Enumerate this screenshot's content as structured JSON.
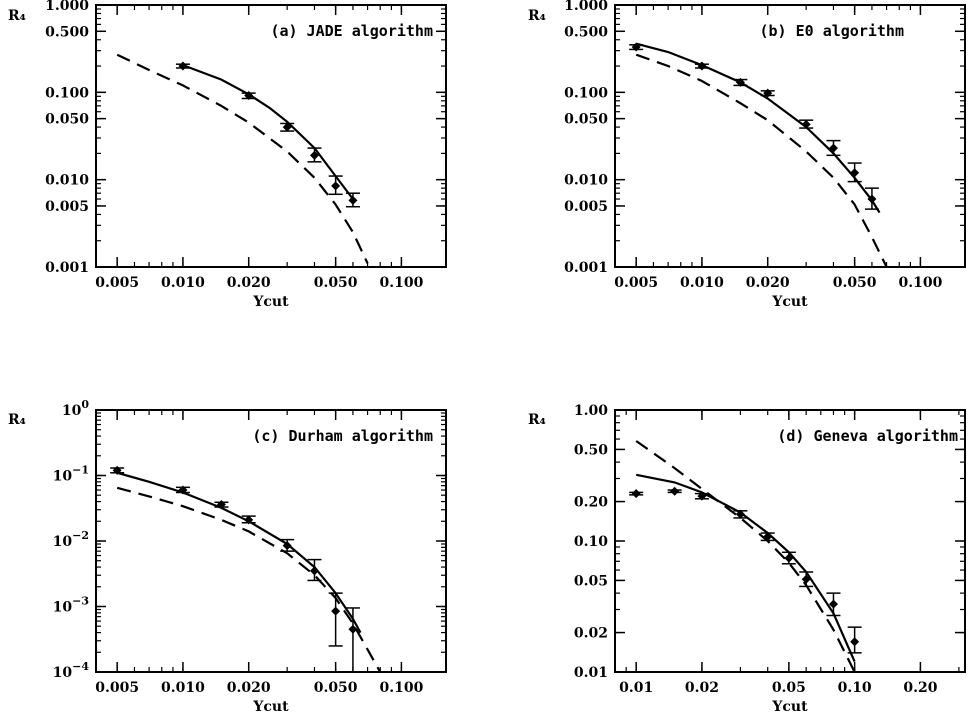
{
  "chart_data": [
    {
      "type": "line",
      "title": "(a) JADE algorithm",
      "xlabel": "Ycut",
      "ylabel": "R₄",
      "xscale": "log",
      "yscale": "log",
      "xlim": [
        0.004,
        0.16
      ],
      "ylim": [
        0.001,
        1.0
      ],
      "x_ticks": [
        {
          "v": 0.005,
          "t": "0.005"
        },
        {
          "v": 0.01,
          "t": "0.010"
        },
        {
          "v": 0.02,
          "t": "0.020"
        },
        {
          "v": 0.05,
          "t": "0.050"
        },
        {
          "v": 0.1,
          "t": "0.100"
        }
      ],
      "y_ticks": [
        {
          "v": 0.001,
          "t": "0.001"
        },
        {
          "v": 0.005,
          "t": "0.005"
        },
        {
          "v": 0.01,
          "t": "0.010"
        },
        {
          "v": 0.05,
          "t": "0.050"
        },
        {
          "v": 0.1,
          "t": "0.100"
        },
        {
          "v": 0.5,
          "t": "0.500"
        },
        {
          "v": 1.0,
          "t": "1.000"
        }
      ],
      "series": [
        {
          "style": "points",
          "x": [
            0.01,
            0.02,
            0.03,
            0.04,
            0.05,
            0.06
          ],
          "y": [
            0.2,
            0.092,
            0.04,
            0.019,
            0.0085,
            0.0058
          ],
          "err_low": [
            0.19,
            0.085,
            0.036,
            0.016,
            0.0068,
            0.0049
          ],
          "err_high": [
            0.21,
            0.098,
            0.044,
            0.023,
            0.011,
            0.007
          ]
        },
        {
          "style": "solid",
          "x": [
            0.01,
            0.015,
            0.02,
            0.025,
            0.03,
            0.04,
            0.05,
            0.06
          ],
          "y": [
            0.205,
            0.14,
            0.095,
            0.066,
            0.046,
            0.023,
            0.011,
            0.006
          ]
        },
        {
          "style": "dashed",
          "x": [
            0.005,
            0.007,
            0.01,
            0.015,
            0.02,
            0.03,
            0.04,
            0.05,
            0.06,
            0.07
          ],
          "y": [
            0.27,
            0.18,
            0.12,
            0.07,
            0.045,
            0.021,
            0.0105,
            0.0052,
            0.0025,
            0.0011
          ]
        }
      ]
    },
    {
      "type": "line",
      "title": "(b) E0 algorithm",
      "xlabel": "Ycut",
      "ylabel": "R₄",
      "xscale": "log",
      "yscale": "log",
      "xlim": [
        0.004,
        0.16
      ],
      "ylim": [
        0.001,
        1.0
      ],
      "x_ticks": [
        {
          "v": 0.005,
          "t": "0.005"
        },
        {
          "v": 0.01,
          "t": "0.010"
        },
        {
          "v": 0.02,
          "t": "0.020"
        },
        {
          "v": 0.05,
          "t": "0.050"
        },
        {
          "v": 0.1,
          "t": "0.100"
        }
      ],
      "y_ticks": [
        {
          "v": 0.001,
          "t": "0.001"
        },
        {
          "v": 0.005,
          "t": "0.005"
        },
        {
          "v": 0.01,
          "t": "0.010"
        },
        {
          "v": 0.05,
          "t": "0.050"
        },
        {
          "v": 0.1,
          "t": "0.100"
        },
        {
          "v": 0.5,
          "t": "0.500"
        },
        {
          "v": 1.0,
          "t": "1.000"
        }
      ],
      "series": [
        {
          "style": "points",
          "x": [
            0.005,
            0.01,
            0.015,
            0.02,
            0.03,
            0.04,
            0.05,
            0.06
          ],
          "y": [
            0.33,
            0.2,
            0.13,
            0.098,
            0.043,
            0.023,
            0.012,
            0.006
          ],
          "err_low": [
            0.31,
            0.19,
            0.12,
            0.092,
            0.039,
            0.019,
            0.0095,
            0.0046
          ],
          "err_high": [
            0.35,
            0.21,
            0.14,
            0.104,
            0.048,
            0.028,
            0.0155,
            0.008
          ]
        },
        {
          "style": "solid",
          "x": [
            0.005,
            0.007,
            0.01,
            0.015,
            0.02,
            0.03,
            0.04,
            0.05,
            0.06,
            0.065
          ],
          "y": [
            0.36,
            0.29,
            0.205,
            0.13,
            0.085,
            0.04,
            0.02,
            0.0105,
            0.0058,
            0.0042
          ]
        },
        {
          "style": "dashed",
          "x": [
            0.005,
            0.007,
            0.01,
            0.015,
            0.02,
            0.03,
            0.04,
            0.05,
            0.06,
            0.07
          ],
          "y": [
            0.27,
            0.2,
            0.135,
            0.075,
            0.048,
            0.021,
            0.0105,
            0.0052,
            0.0022,
            0.001
          ]
        }
      ]
    },
    {
      "type": "line",
      "title": "(c) Durham algorithm",
      "xlabel": "Ycut",
      "ylabel": "R₄",
      "xscale": "log",
      "yscale": "log",
      "xlim": [
        0.004,
        0.16
      ],
      "ylim": [
        0.0001,
        1.0
      ],
      "x_ticks": [
        {
          "v": 0.005,
          "t": "0.005"
        },
        {
          "v": 0.01,
          "t": "0.010"
        },
        {
          "v": 0.02,
          "t": "0.020"
        },
        {
          "v": 0.05,
          "t": "0.050"
        },
        {
          "v": 0.1,
          "t": "0.100"
        }
      ],
      "y_ticks": [
        {
          "v": 0.0001,
          "b": "10",
          "e": "−4"
        },
        {
          "v": 0.001,
          "b": "10",
          "e": "−3"
        },
        {
          "v": 0.01,
          "b": "10",
          "e": "−2"
        },
        {
          "v": 0.1,
          "b": "10",
          "e": "−1"
        },
        {
          "v": 1.0,
          "b": "10",
          "e": "0"
        }
      ],
      "series": [
        {
          "style": "points",
          "x": [
            0.005,
            0.01,
            0.015,
            0.02,
            0.03,
            0.04,
            0.05,
            0.06
          ],
          "y": [
            0.12,
            0.06,
            0.036,
            0.021,
            0.0085,
            0.0035,
            0.00085,
            0.00045
          ],
          "err_low": [
            0.11,
            0.055,
            0.033,
            0.019,
            0.007,
            0.0025,
            0.00025,
            0.0001
          ],
          "err_high": [
            0.13,
            0.066,
            0.039,
            0.024,
            0.0105,
            0.0052,
            0.0016,
            0.00095
          ]
        },
        {
          "style": "solid",
          "x": [
            0.005,
            0.007,
            0.01,
            0.015,
            0.02,
            0.03,
            0.04,
            0.05,
            0.06,
            0.065
          ],
          "y": [
            0.11,
            0.08,
            0.055,
            0.032,
            0.02,
            0.009,
            0.004,
            0.0016,
            0.00065,
            0.0004
          ]
        },
        {
          "style": "dashed",
          "x": [
            0.005,
            0.007,
            0.01,
            0.015,
            0.02,
            0.03,
            0.04,
            0.05,
            0.06,
            0.07,
            0.08
          ],
          "y": [
            0.065,
            0.048,
            0.034,
            0.021,
            0.014,
            0.0065,
            0.003,
            0.00135,
            0.00055,
            0.00022,
            0.0001
          ]
        }
      ]
    },
    {
      "type": "line",
      "title": "(d) Geneva algorithm",
      "xlabel": "Ycut",
      "ylabel": "R₄",
      "xscale": "log",
      "yscale": "log",
      "xlim": [
        0.008,
        0.32
      ],
      "ylim": [
        0.01,
        1.0
      ],
      "x_ticks": [
        {
          "v": 0.01,
          "t": "0.01"
        },
        {
          "v": 0.02,
          "t": "0.02"
        },
        {
          "v": 0.05,
          "t": "0.05"
        },
        {
          "v": 0.1,
          "t": "0.10"
        },
        {
          "v": 0.2,
          "t": "0.20"
        }
      ],
      "y_ticks": [
        {
          "v": 0.01,
          "t": "0.01"
        },
        {
          "v": 0.02,
          "t": "0.02"
        },
        {
          "v": 0.05,
          "t": "0.05"
        },
        {
          "v": 0.1,
          "t": "0.10"
        },
        {
          "v": 0.2,
          "t": "0.20"
        },
        {
          "v": 0.5,
          "t": "0.50"
        },
        {
          "v": 1.0,
          "t": "1.00"
        }
      ],
      "series": [
        {
          "style": "points",
          "x": [
            0.01,
            0.015,
            0.02,
            0.03,
            0.04,
            0.05,
            0.06,
            0.08,
            0.1
          ],
          "y": [
            0.23,
            0.24,
            0.22,
            0.16,
            0.108,
            0.074,
            0.051,
            0.033,
            0.017
          ],
          "err_low": [
            0.225,
            0.235,
            0.21,
            0.15,
            0.101,
            0.067,
            0.045,
            0.027,
            0.014
          ],
          "err_high": [
            0.235,
            0.245,
            0.23,
            0.17,
            0.115,
            0.082,
            0.058,
            0.04,
            0.022
          ]
        },
        {
          "style": "solid",
          "x": [
            0.01,
            0.015,
            0.02,
            0.03,
            0.04,
            0.05,
            0.06,
            0.08,
            0.1
          ],
          "y": [
            0.32,
            0.28,
            0.235,
            0.165,
            0.115,
            0.082,
            0.058,
            0.028,
            0.012
          ]
        },
        {
          "style": "dashed",
          "x": [
            0.01,
            0.015,
            0.02,
            0.03,
            0.04,
            0.05,
            0.06,
            0.08,
            0.1
          ],
          "y": [
            0.58,
            0.36,
            0.25,
            0.15,
            0.1,
            0.068,
            0.046,
            0.021,
            0.01
          ]
        }
      ]
    }
  ]
}
